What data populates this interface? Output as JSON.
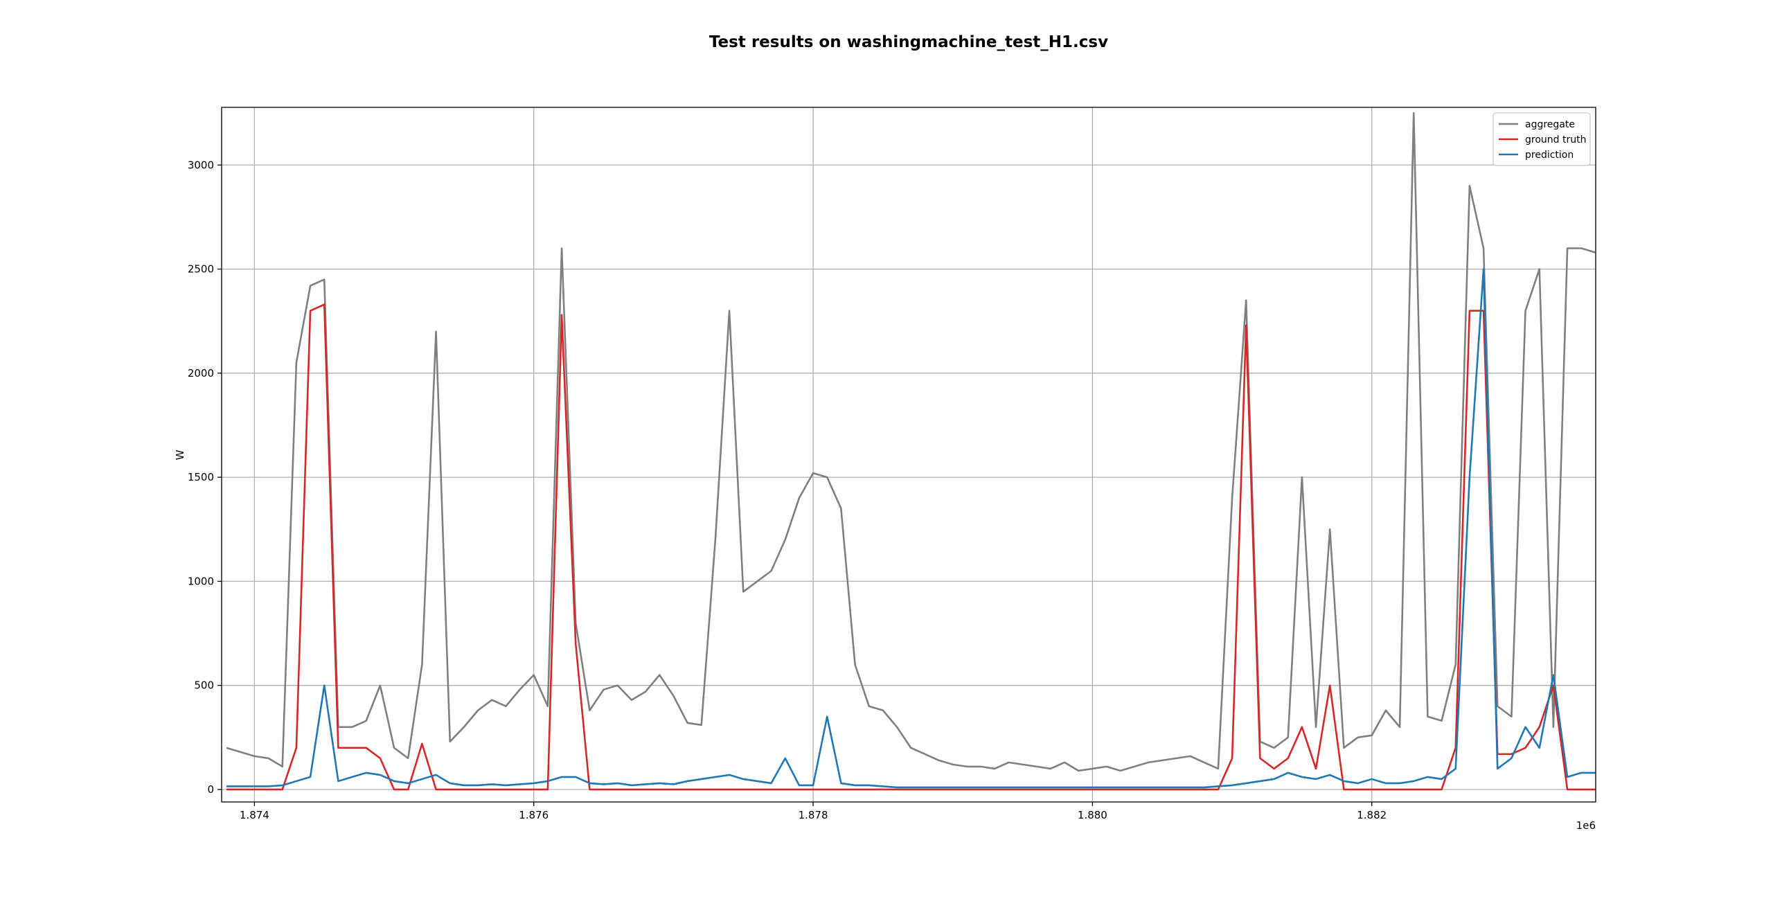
{
  "chart_data": {
    "type": "line",
    "title": "Test results on washingmachine_test_H1.csv",
    "y_label": "W",
    "x_offset_label": "1e6",
    "x": [
      1873800,
      1873900,
      1874000,
      1874100,
      1874200,
      1874300,
      1874400,
      1874500,
      1874600,
      1874700,
      1874800,
      1874900,
      1875000,
      1875100,
      1875200,
      1875300,
      1875400,
      1875500,
      1875600,
      1875700,
      1875800,
      1875900,
      1876000,
      1876100,
      1876200,
      1876300,
      1876400,
      1876500,
      1876600,
      1876700,
      1876800,
      1876900,
      1877000,
      1877100,
      1877200,
      1877300,
      1877400,
      1877500,
      1877600,
      1877700,
      1877800,
      1877900,
      1878000,
      1878100,
      1878200,
      1878300,
      1878400,
      1878500,
      1878600,
      1878700,
      1878800,
      1878900,
      1879000,
      1879100,
      1879200,
      1879300,
      1879400,
      1879500,
      1879600,
      1879700,
      1879800,
      1879900,
      1880000,
      1880100,
      1880200,
      1880300,
      1880400,
      1880500,
      1880600,
      1880700,
      1880800,
      1880900,
      1881000,
      1881100,
      1881200,
      1881300,
      1881400,
      1881500,
      1881600,
      1881700,
      1881800,
      1881900,
      1882000,
      1882100,
      1882200,
      1882300,
      1882400,
      1882500,
      1882600,
      1882700,
      1882800,
      1882900,
      1883000,
      1883100,
      1883200,
      1883300,
      1883400,
      1883500,
      1883600
    ],
    "series": [
      {
        "name": "aggregate",
        "color": "#7f7f7f",
        "values": [
          200,
          180,
          160,
          150,
          110,
          2050,
          2420,
          2450,
          300,
          300,
          330,
          500,
          200,
          150,
          600,
          2200,
          230,
          300,
          380,
          430,
          400,
          480,
          550,
          400,
          2600,
          800,
          380,
          480,
          500,
          430,
          470,
          550,
          450,
          320,
          310,
          1200,
          2300,
          950,
          1000,
          1050,
          1200,
          1400,
          1520,
          1500,
          1350,
          600,
          400,
          380,
          300,
          200,
          170,
          140,
          120,
          110,
          110,
          100,
          130,
          120,
          110,
          100,
          130,
          90,
          100,
          110,
          90,
          110,
          130,
          140,
          150,
          160,
          130,
          100,
          1400,
          2350,
          230,
          200,
          250,
          1500,
          300,
          1250,
          200,
          250,
          260,
          380,
          300,
          3250,
          350,
          330,
          600,
          2900,
          2600,
          400,
          350,
          2300,
          2500,
          300,
          2600,
          2600,
          2580
        ]
      },
      {
        "name": "ground truth",
        "color": "#d62728",
        "values": [
          0,
          0,
          0,
          0,
          0,
          200,
          2300,
          2330,
          200,
          200,
          200,
          150,
          0,
          0,
          220,
          0,
          0,
          0,
          0,
          0,
          0,
          0,
          0,
          0,
          2280,
          700,
          0,
          0,
          0,
          0,
          0,
          0,
          0,
          0,
          0,
          0,
          0,
          0,
          0,
          0,
          0,
          0,
          0,
          0,
          0,
          0,
          0,
          0,
          0,
          0,
          0,
          0,
          0,
          0,
          0,
          0,
          0,
          0,
          0,
          0,
          0,
          0,
          0,
          0,
          0,
          0,
          0,
          0,
          0,
          0,
          0,
          0,
          150,
          2230,
          150,
          100,
          150,
          300,
          100,
          500,
          0,
          0,
          0,
          0,
          0,
          0,
          0,
          0,
          200,
          2300,
          2300,
          170,
          170,
          200,
          300,
          500,
          0,
          0,
          0
        ]
      },
      {
        "name": "prediction",
        "color": "#1f77b4",
        "values": [
          15,
          15,
          15,
          15,
          20,
          40,
          60,
          500,
          40,
          60,
          80,
          70,
          40,
          30,
          50,
          70,
          30,
          20,
          20,
          25,
          20,
          25,
          30,
          40,
          60,
          60,
          30,
          25,
          30,
          20,
          25,
          30,
          25,
          40,
          50,
          60,
          70,
          50,
          40,
          30,
          150,
          20,
          20,
          350,
          30,
          20,
          20,
          15,
          10,
          10,
          10,
          10,
          10,
          10,
          10,
          10,
          10,
          10,
          10,
          10,
          10,
          10,
          10,
          10,
          10,
          10,
          10,
          10,
          10,
          10,
          10,
          15,
          20,
          30,
          40,
          50,
          80,
          60,
          50,
          70,
          40,
          30,
          50,
          30,
          30,
          40,
          60,
          50,
          100,
          1500,
          2500,
          100,
          150,
          300,
          200,
          550,
          60,
          80,
          80
        ]
      }
    ],
    "xlim": [
      1873765,
      1883603
    ],
    "ylim": [
      -60,
      3277
    ],
    "xticks": [
      {
        "value": 1874000,
        "label": "1.874"
      },
      {
        "value": 1876000,
        "label": "1.876"
      },
      {
        "value": 1878000,
        "label": "1.878"
      },
      {
        "value": 1880000,
        "label": "1.880"
      },
      {
        "value": 1882000,
        "label": "1.882"
      }
    ],
    "yticks": [
      0,
      500,
      1000,
      1500,
      2000,
      2500,
      3000
    ],
    "grid": true,
    "legend": "upper right"
  }
}
